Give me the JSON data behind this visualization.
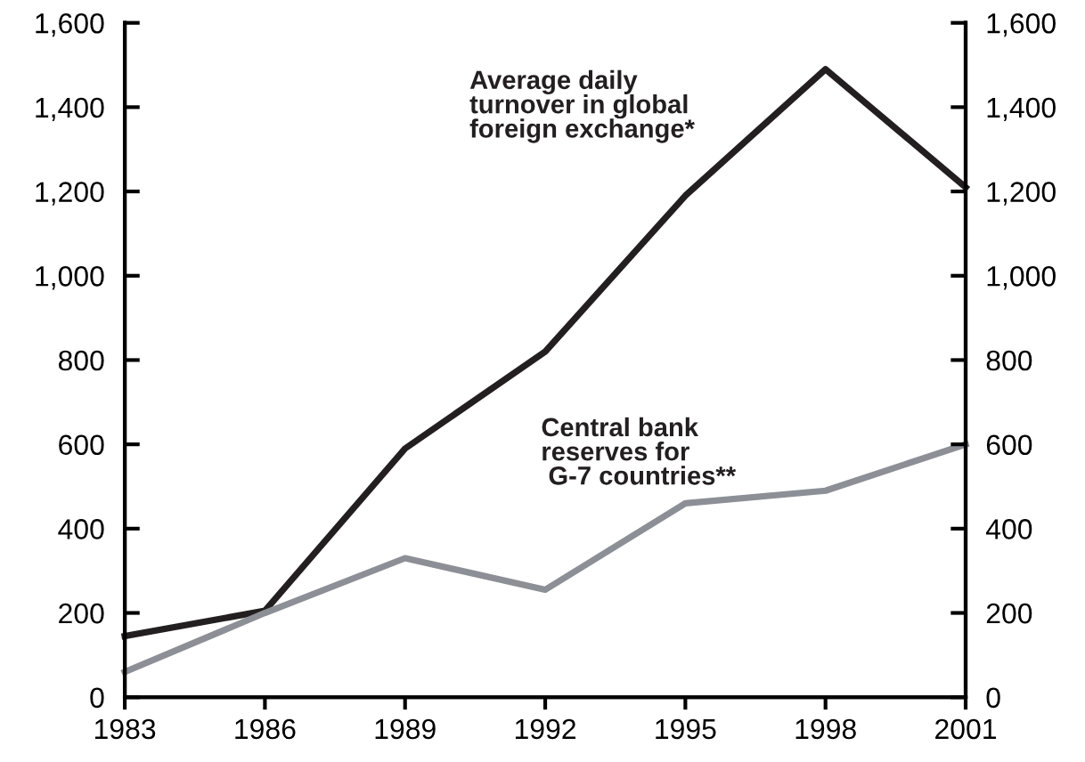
{
  "chart_data": {
    "type": "line",
    "x": [
      1983,
      1986,
      1989,
      1992,
      1995,
      1998,
      2001
    ],
    "series": [
      {
        "name": "Average daily\nturnover in global\nforeign exchange*",
        "color": "#231f20",
        "values": [
          145,
          205,
          590,
          820,
          1190,
          1490,
          1210
        ]
      },
      {
        "name": "Central bank\nreserves for\n G-7 countries**",
        "color": "#8c9096",
        "values": [
          60,
          200,
          330,
          255,
          460,
          490,
          600
        ]
      }
    ],
    "xlim": [
      1983,
      2001
    ],
    "xticks": [
      1983,
      1986,
      1989,
      1992,
      1995,
      1998,
      2001
    ],
    "ylim": [
      0,
      1600
    ],
    "yticks": [
      {
        "value": 0,
        "label": "0"
      },
      {
        "value": 200,
        "label": "200"
      },
      {
        "value": 400,
        "label": "400"
      },
      {
        "value": 600,
        "label": "600"
      },
      {
        "value": 800,
        "label": "800"
      },
      {
        "value": 1000,
        "label": "1,000"
      },
      {
        "value": 1200,
        "label": "1,200"
      },
      {
        "value": 1400,
        "label": "1,400"
      },
      {
        "value": 1600,
        "label": "1,600"
      }
    ],
    "y2lim": [
      0,
      1600
    ],
    "y2ticks": [
      {
        "value": 0,
        "label": "0"
      },
      {
        "value": 200,
        "label": "200"
      },
      {
        "value": 400,
        "label": "400"
      },
      {
        "value": 600,
        "label": "600"
      },
      {
        "value": 800,
        "label": "800"
      },
      {
        "value": 1000,
        "label": "1,000"
      },
      {
        "value": 1200,
        "label": "1,200"
      },
      {
        "value": 1400,
        "label": "1,400"
      },
      {
        "value": 1600,
        "label": "1,600"
      }
    ],
    "grid": false,
    "legend": false,
    "marker": "none",
    "line_style": "solid"
  }
}
